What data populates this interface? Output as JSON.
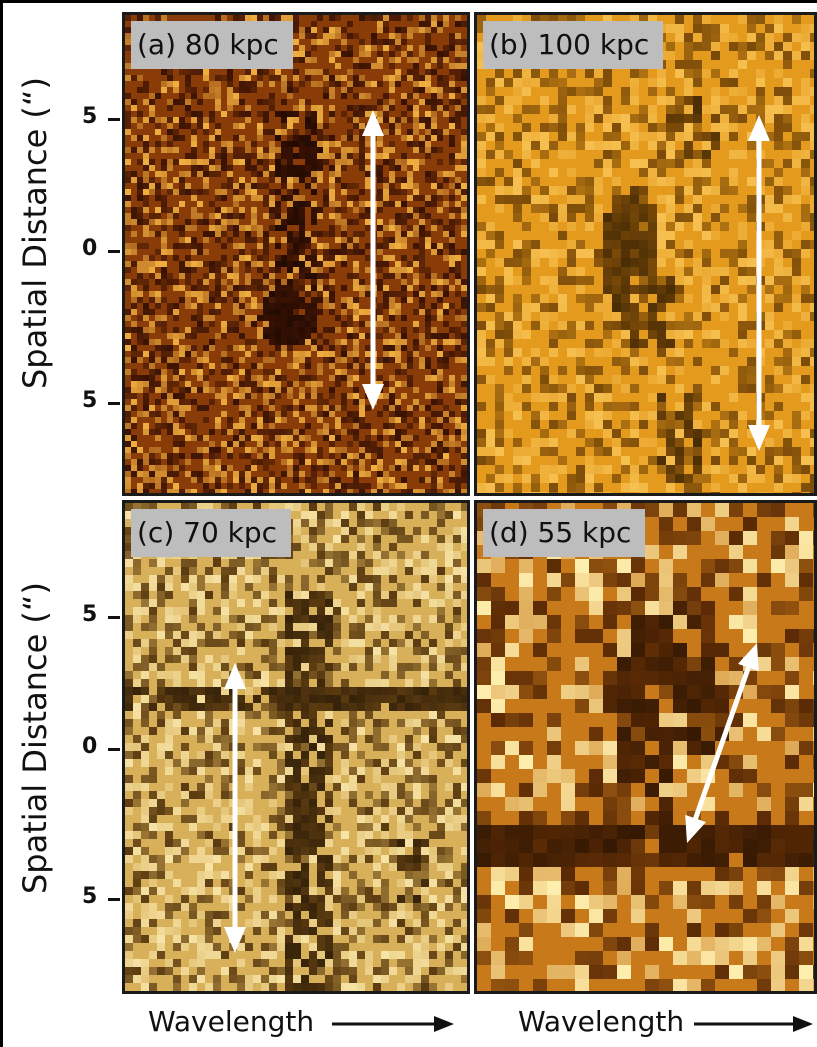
{
  "panels": [
    {
      "label": "(a) 80 kpc"
    },
    {
      "label": "(b) 100 kpc"
    },
    {
      "label": "(c) 70 kpc"
    },
    {
      "label": "(d) 55 kpc"
    }
  ],
  "y_axis": {
    "label": "Spatial Distance (“)",
    "ticks": [
      "5",
      "0",
      "5"
    ]
  },
  "x_axis": {
    "label": "Wavelength"
  },
  "colors": {
    "panel_a": "#8a3c08",
    "panel_b": "#e49a1c",
    "panel_c": "#d8b059",
    "panel_d": "#c87a1a",
    "arrow": "#ffffff",
    "label_bg": "#bdbdbd"
  }
}
